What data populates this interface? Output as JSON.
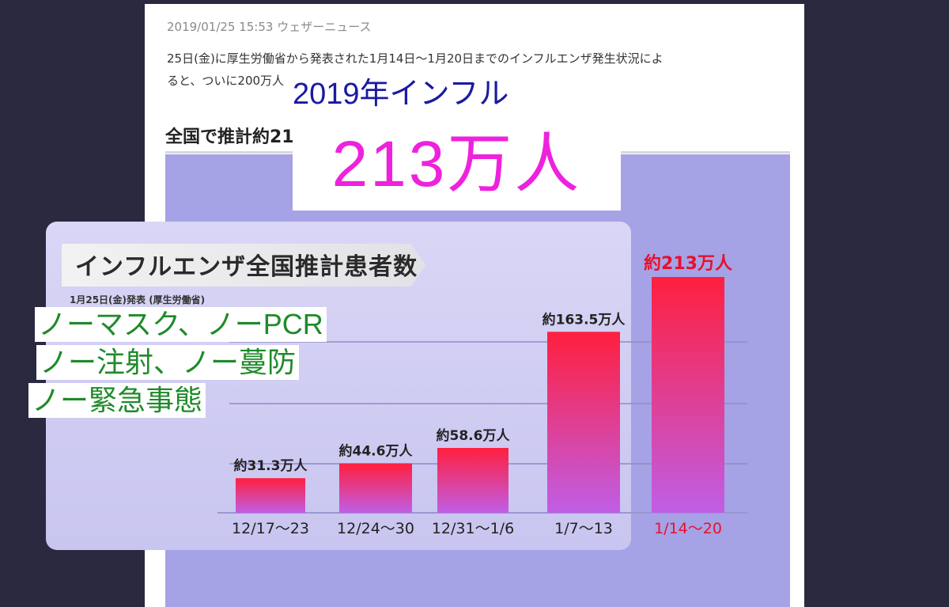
{
  "article": {
    "meta": "2019/01/25 15:53 ウェザーニュース",
    "body_line1": "25日(金)に厚生労働省から発表された1月14日～1月20日までのインフルエンザ発生状況によ",
    "body_line2": "ると、ついに200万人を超えました。",
    "section_title": "全国で推計約213万人"
  },
  "overlays": {
    "blue_text": "2019年インフル",
    "pink_text": "213万人",
    "green_lines": [
      "ノーマスク、ノーPCR",
      "ノー注射、ノー蔓防",
      "ノー緊急事態"
    ]
  },
  "chart_data": {
    "type": "bar",
    "title": "インフルエンザ全国推計患者数",
    "subtitle": "1月25日(金)発表 (厚生労働省)",
    "categories": [
      "12/17〜23",
      "12/24〜30",
      "12/31〜1/6",
      "1/7〜13",
      "1/14〜20"
    ],
    "values": [
      31.3,
      44.6,
      58.6,
      163.5,
      213
    ],
    "data_labels": [
      "約31.3万人",
      "約44.6万人",
      "約58.6万人",
      "約163.5万人",
      "約213万人"
    ],
    "unit": "万人",
    "ylim": [
      0,
      213
    ],
    "highlight_index": 4,
    "colors": {
      "bar_top": "#ff1f3e",
      "bar_bottom": "#c05ee6",
      "highlight_label": "#e8102a",
      "label": "#222222"
    }
  }
}
